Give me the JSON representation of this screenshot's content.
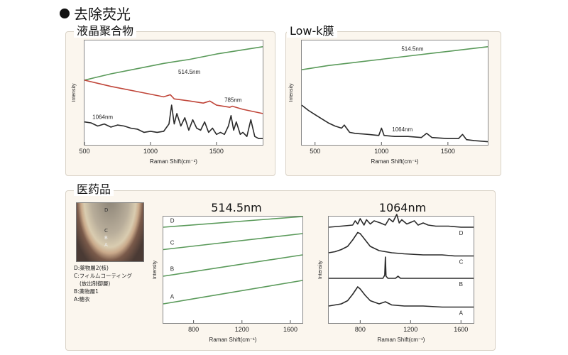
{
  "heading": {
    "bullet": "●",
    "text": "去除荧光"
  },
  "panels": {
    "lc": {
      "label": "液晶聚合物"
    },
    "lowk": {
      "label": "Low-k膜"
    },
    "pharma": {
      "label": "医药品"
    }
  },
  "legend": {
    "lines": [
      "D:薬物層2(核)",
      "C:フィルムコーティング",
      "(放出制御層)",
      "B:薬物層1",
      "A:糖衣"
    ],
    "image_labels": [
      "D",
      "C",
      "B",
      "A"
    ]
  },
  "colors": {
    "green": "#5a9a5a",
    "red": "#c0463a",
    "black": "#2a2a2a"
  },
  "chart_data": [
    {
      "id": "lc",
      "type": "line",
      "title": "液晶聚合物",
      "xlabel": "Raman Shift(cm⁻¹)",
      "ylabel": "Intensity",
      "xlim": [
        500,
        1850
      ],
      "ylim": [
        0,
        100
      ],
      "xticks": [
        500,
        1000,
        1500
      ],
      "series": [
        {
          "name": "514.5nm",
          "color": "#5a9a5a",
          "x": [
            500,
            700,
            900,
            1100,
            1300,
            1500,
            1700,
            1850
          ],
          "y": [
            62,
            68,
            73,
            78,
            82,
            87,
            91,
            94
          ]
        },
        {
          "name": "785nm",
          "color": "#c0463a",
          "x": [
            500,
            700,
            900,
            1100,
            1150,
            1180,
            1300,
            1400,
            1450,
            1500,
            1600,
            1620,
            1700,
            1850
          ],
          "y": [
            62,
            56,
            51,
            46,
            48,
            44,
            42,
            40,
            42,
            38,
            36,
            37,
            34,
            30
          ]
        },
        {
          "name": "1064nm",
          "color": "#2a2a2a",
          "x": [
            500,
            550,
            600,
            650,
            700,
            750,
            800,
            850,
            900,
            950,
            1000,
            1050,
            1100,
            1140,
            1160,
            1180,
            1200,
            1230,
            1260,
            1290,
            1320,
            1350,
            1380,
            1410,
            1440,
            1470,
            1500,
            1530,
            1560,
            1590,
            1610,
            1630,
            1650,
            1680,
            1700,
            1730,
            1760,
            1790,
            1820,
            1850
          ],
          "y": [
            22,
            21,
            18,
            20,
            17,
            19,
            18,
            16,
            15,
            12,
            13,
            12,
            13,
            20,
            38,
            20,
            30,
            18,
            26,
            14,
            24,
            16,
            14,
            22,
            12,
            16,
            10,
            12,
            10,
            18,
            28,
            14,
            22,
            10,
            12,
            8,
            24,
            8,
            6,
            6
          ]
        }
      ]
    },
    {
      "id": "lowk",
      "type": "line",
      "title": "Low-k膜",
      "xlabel": "Raman Shift(cm⁻¹)",
      "ylabel": "Intensity",
      "xlim": [
        400,
        1800
      ],
      "ylim": [
        0,
        100
      ],
      "xticks": [
        500,
        1000,
        1500
      ],
      "series": [
        {
          "name": "514.5nm",
          "color": "#5a9a5a",
          "x": [
            400,
            600,
            800,
            1000,
            1200,
            1400,
            1600,
            1800
          ],
          "y": [
            72,
            76,
            79,
            82,
            85,
            88,
            91,
            94
          ]
        },
        {
          "name": "1064nm",
          "color": "#2a2a2a",
          "x": [
            400,
            450,
            500,
            550,
            600,
            650,
            700,
            720,
            760,
            800,
            900,
            980,
            1000,
            1020,
            1100,
            1200,
            1300,
            1340,
            1380,
            1500,
            1580,
            1610,
            1640,
            1700,
            1800
          ],
          "y": [
            38,
            33,
            29,
            25,
            21,
            18,
            16,
            19,
            12,
            11,
            10,
            9,
            16,
            9,
            8,
            8,
            7,
            11,
            7,
            6,
            6,
            10,
            5,
            4,
            3
          ]
        }
      ]
    },
    {
      "id": "p514",
      "type": "line",
      "title": "514.5nm",
      "xlabel": "Raman Shift(cm⁻¹)",
      "ylabel": "Intensity",
      "xlim": [
        550,
        1700
      ],
      "ylim": [
        0,
        100
      ],
      "xticks": [
        800,
        1200,
        1600
      ],
      "series": [
        {
          "name": "D",
          "color": "#5a9a5a",
          "x": [
            550,
            1700
          ],
          "y": [
            90,
            100
          ]
        },
        {
          "name": "C",
          "color": "#5a9a5a",
          "x": [
            550,
            1700
          ],
          "y": [
            69,
            84
          ]
        },
        {
          "name": "B",
          "color": "#5a9a5a",
          "x": [
            550,
            1700
          ],
          "y": [
            44,
            64
          ]
        },
        {
          "name": "A",
          "color": "#5a9a5a",
          "x": [
            550,
            1700
          ],
          "y": [
            18,
            40
          ]
        }
      ]
    },
    {
      "id": "p1064",
      "type": "line",
      "title": "1064nm",
      "xlabel": "Raman Shift(cm⁻¹)",
      "ylabel": "Intensity",
      "xlim": [
        550,
        1700
      ],
      "ylim": [
        0,
        100
      ],
      "xticks": [
        800,
        1200,
        1600
      ],
      "series": [
        {
          "name": "D",
          "color": "#2a2a2a",
          "x": [
            550,
            650,
            740,
            760,
            780,
            800,
            830,
            850,
            880,
            910,
            960,
            1000,
            1030,
            1060,
            1090,
            1110,
            1130,
            1170,
            1230,
            1260,
            1300,
            1340,
            1400,
            1500,
            1600,
            1700
          ],
          "y": [
            90,
            91,
            92,
            96,
            93,
            98,
            92,
            97,
            93,
            96,
            94,
            92,
            98,
            95,
            102,
            94,
            97,
            93,
            96,
            92,
            94,
            92,
            91,
            91,
            90,
            90
          ]
        },
        {
          "name": "C",
          "color": "#2a2a2a",
          "x": [
            550,
            600,
            650,
            700,
            740,
            780,
            800,
            840,
            880,
            950,
            1050,
            1150,
            1300,
            1450,
            1550,
            1700
          ],
          "y": [
            66,
            67,
            69,
            72,
            78,
            85,
            84,
            78,
            72,
            68,
            66,
            65,
            64,
            64,
            63,
            63
          ]
        },
        {
          "name": "B",
          "color": "#2a2a2a",
          "x": [
            550,
            800,
            980,
            995,
            1000,
            1005,
            1020,
            1080,
            1100,
            1120,
            1300,
            1500,
            1700
          ],
          "y": [
            42,
            42,
            42,
            45,
            62,
            44,
            42,
            42,
            44,
            42,
            42,
            42,
            42
          ]
        },
        {
          "name": "A",
          "color": "#2a2a2a",
          "x": [
            550,
            600,
            650,
            700,
            740,
            780,
            800,
            840,
            880,
            950,
            1000,
            1050,
            1150,
            1300,
            1450,
            1550,
            1700
          ],
          "y": [
            16,
            17,
            18,
            21,
            27,
            34,
            32,
            26,
            21,
            18,
            20,
            17,
            16,
            16,
            15,
            15,
            15
          ]
        }
      ]
    }
  ]
}
